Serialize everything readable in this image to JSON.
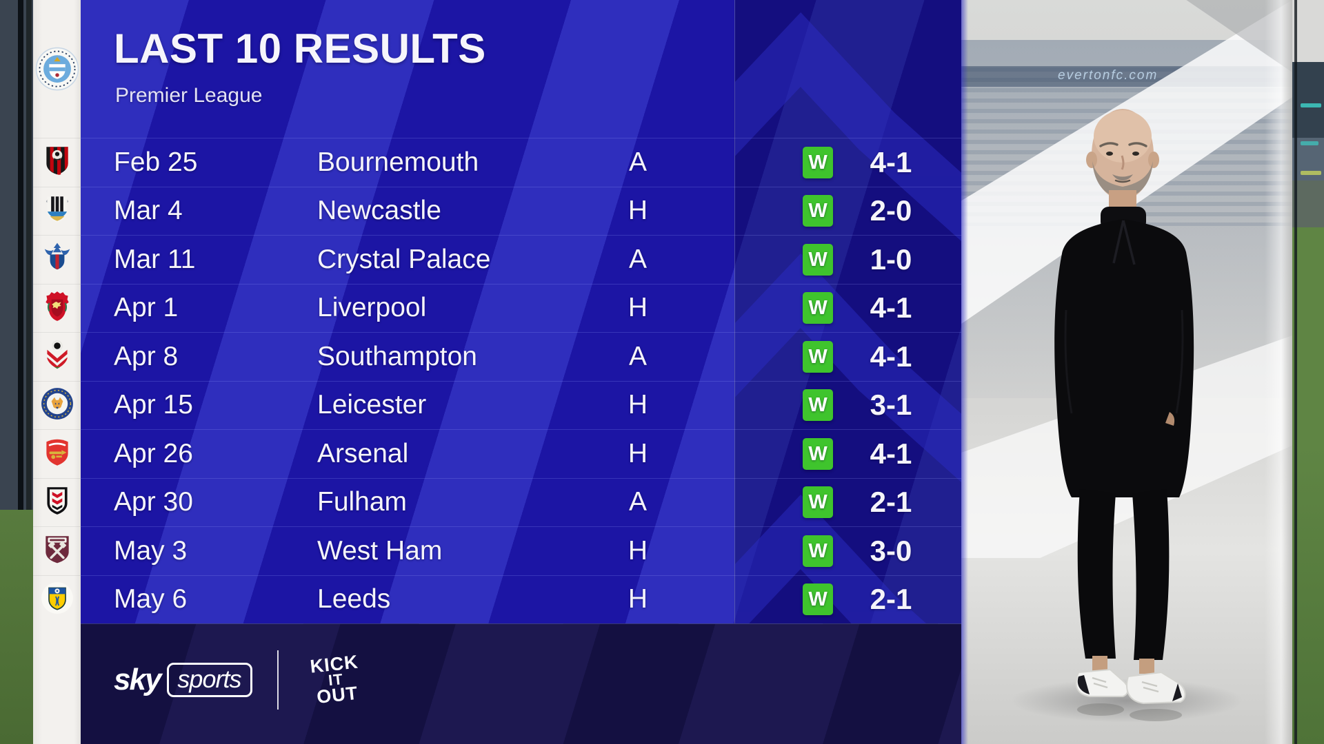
{
  "header": {
    "title": "LAST 10 RESULTS",
    "subtitle": "Premier League"
  },
  "team": {
    "name": "Manchester City",
    "badge": "manchester-city"
  },
  "results": [
    {
      "date": "Feb 25",
      "opponent": "Bournemouth",
      "venue": "A",
      "outcome": "W",
      "score": "4-1",
      "badge": "bournemouth"
    },
    {
      "date": "Mar 4",
      "opponent": "Newcastle",
      "venue": "H",
      "outcome": "W",
      "score": "2-0",
      "badge": "newcastle"
    },
    {
      "date": "Mar 11",
      "opponent": "Crystal Palace",
      "venue": "A",
      "outcome": "W",
      "score": "1-0",
      "badge": "crystal-palace"
    },
    {
      "date": "Apr 1",
      "opponent": "Liverpool",
      "venue": "H",
      "outcome": "W",
      "score": "4-1",
      "badge": "liverpool"
    },
    {
      "date": "Apr 8",
      "opponent": "Southampton",
      "venue": "A",
      "outcome": "W",
      "score": "4-1",
      "badge": "southampton"
    },
    {
      "date": "Apr 15",
      "opponent": "Leicester",
      "venue": "H",
      "outcome": "W",
      "score": "3-1",
      "badge": "leicester"
    },
    {
      "date": "Apr 26",
      "opponent": "Arsenal",
      "venue": "H",
      "outcome": "W",
      "score": "4-1",
      "badge": "arsenal"
    },
    {
      "date": "Apr 30",
      "opponent": "Fulham",
      "venue": "A",
      "outcome": "W",
      "score": "2-1",
      "badge": "fulham"
    },
    {
      "date": "May 3",
      "opponent": "West Ham",
      "venue": "H",
      "outcome": "W",
      "score": "3-0",
      "badge": "west-ham"
    },
    {
      "date": "May 6",
      "opponent": "Leeds",
      "venue": "H",
      "outcome": "W",
      "score": "2-1",
      "badge": "leeds"
    }
  ],
  "footer": {
    "sky_brand": "sky",
    "sports_brand": "sports",
    "kick_it_out": {
      "line1": "KICK",
      "line2": "IT",
      "line3": "OUT"
    }
  },
  "photo": {
    "watermark": "evertonfc.com"
  },
  "colors": {
    "panel_blue": "#1c15a4",
    "stripe_blue": "#545eee",
    "right_column_shade": "#140e86",
    "band_navy": "#1d1850",
    "win_green": "#3fc42d",
    "rail_white": "#f3f1ee",
    "text": "#f5f4fa"
  }
}
